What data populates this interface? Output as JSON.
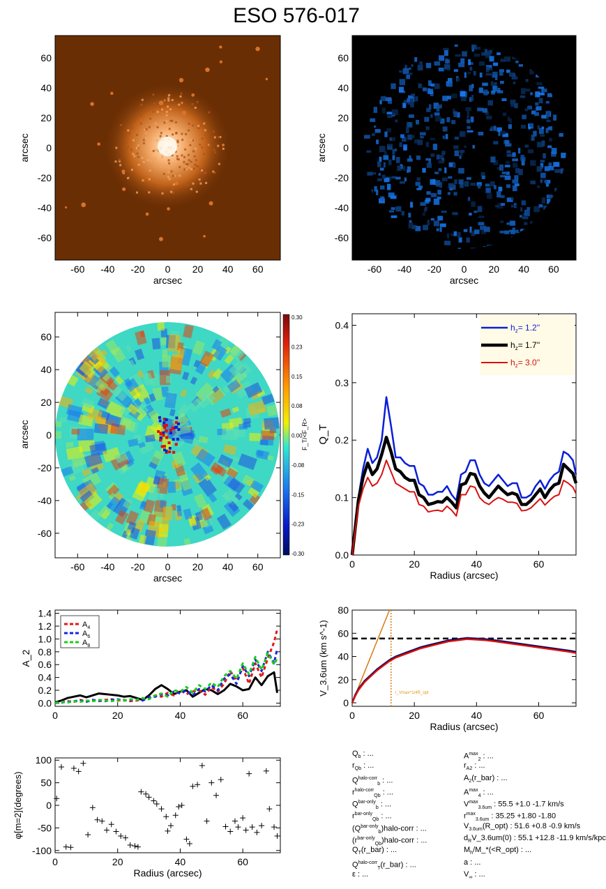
{
  "title": "ESO 576-017",
  "colors": {
    "image_bg": "#6a2e04",
    "glow": "#f4a25a",
    "map_bg": "#000000",
    "blue_sky": "#2a6fdc",
    "h1": "#0a1ed8",
    "h2": "#000000",
    "h3": "#d81010",
    "legend_bg": "#fffbe6",
    "A4": "#e01818",
    "A6": "#1424e8",
    "A8": "#18d018",
    "rot_line": "#d97a16",
    "vmax_text": "#e09a10"
  },
  "chart_data": [
    {
      "type": "image",
      "panel": "optical-image",
      "xlabel": "arcsec",
      "ylabel": "arcsec",
      "xticks": [
        -60,
        -40,
        -20,
        0,
        20,
        40,
        60
      ],
      "yticks": [
        60,
        40,
        20,
        0,
        -20,
        -40,
        -60
      ],
      "xlim": [
        -75,
        75
      ],
      "ylim": [
        -75,
        75
      ]
    },
    {
      "type": "image",
      "panel": "3.6um-image",
      "xlabel": "arcsec",
      "ylabel": "arcsec",
      "xticks": [
        -60,
        -40,
        -20,
        0,
        20,
        40,
        60
      ],
      "yticks": [
        60,
        40,
        20,
        0,
        -20,
        -40,
        -60
      ],
      "xlim": [
        -75,
        75
      ],
      "ylim": [
        -75,
        75
      ]
    },
    {
      "type": "heatmap",
      "panel": "force-ratio-map",
      "xlabel": "arcsec",
      "ylabel": "arcsec",
      "xticks": [
        -60,
        -40,
        -20,
        0,
        20,
        40,
        60
      ],
      "yticks": [
        60,
        40,
        20,
        0,
        -20,
        -40,
        -60
      ],
      "xlim": [
        -75,
        75
      ],
      "ylim": [
        -75,
        75
      ],
      "colorbar_label": "F_T/<F_R>",
      "colorbar_ticks": [
        "0.30",
        "0.23",
        "0.15",
        "0.08",
        "0.00",
        "-0.08",
        "-0.15",
        "-0.23",
        "-0.30"
      ]
    },
    {
      "type": "line",
      "panel": "QT-profile",
      "xlabel": "Radius (arcsec)",
      "ylabel": "Q_T",
      "xlim": [
        0,
        72
      ],
      "ylim": [
        0,
        0.42
      ],
      "xticks": [
        0,
        20,
        40,
        60
      ],
      "yticks": [
        "0.0",
        "0.1",
        "0.2",
        "0.3",
        "0.4"
      ],
      "x": [
        0,
        2,
        3.5,
        5,
        6.5,
        8,
        9.5,
        11,
        12.5,
        14,
        15.5,
        17,
        18.5,
        20,
        21.5,
        23,
        24.5,
        26,
        27.5,
        29,
        30.5,
        32,
        33.5,
        35,
        36.5,
        38,
        39.5,
        41,
        42.5,
        44,
        45.5,
        47,
        48.5,
        50,
        51.5,
        53,
        54.5,
        56,
        57.5,
        59,
        60.5,
        62,
        63.5,
        65,
        66.5,
        68,
        69.5,
        71,
        72
      ],
      "series": [
        {
          "name": "h_z=   1.2''",
          "label_prefix": "h",
          "label_sub": "z",
          "label_value": "=   1.2''",
          "color_key": "h1",
          "width": 2.5,
          "values": [
            0,
            0.1,
            0.15,
            0.185,
            0.16,
            0.17,
            0.2,
            0.275,
            0.225,
            0.17,
            0.17,
            0.16,
            0.155,
            0.155,
            0.125,
            0.12,
            0.105,
            0.105,
            0.11,
            0.11,
            0.12,
            0.105,
            0.095,
            0.14,
            0.145,
            0.165,
            0.165,
            0.14,
            0.125,
            0.12,
            0.13,
            0.14,
            0.13,
            0.12,
            0.125,
            0.125,
            0.1,
            0.1,
            0.105,
            0.12,
            0.13,
            0.115,
            0.13,
            0.14,
            0.145,
            0.18,
            0.175,
            0.165,
            0.14
          ]
        },
        {
          "name": "h_z=   1.7''",
          "label_prefix": "h",
          "label_sub": "z",
          "label_value": "=   1.7''",
          "color_key": "h2",
          "width": 4.5,
          "values": [
            0,
            0.095,
            0.135,
            0.16,
            0.14,
            0.15,
            0.175,
            0.205,
            0.18,
            0.15,
            0.145,
            0.135,
            0.13,
            0.13,
            0.105,
            0.1,
            0.088,
            0.09,
            0.093,
            0.092,
            0.1,
            0.092,
            0.082,
            0.122,
            0.125,
            0.142,
            0.14,
            0.12,
            0.108,
            0.1,
            0.11,
            0.12,
            0.112,
            0.105,
            0.108,
            0.105,
            0.088,
            0.088,
            0.095,
            0.105,
            0.115,
            0.1,
            0.113,
            0.122,
            0.125,
            0.158,
            0.15,
            0.142,
            0.125
          ]
        },
        {
          "name": "h_z=   3.0''",
          "label_prefix": "h",
          "label_sub": "z",
          "label_value": "=   3.0''",
          "color_key": "h3",
          "width": 2,
          "values": [
            0,
            0.085,
            0.115,
            0.135,
            0.12,
            0.125,
            0.14,
            0.165,
            0.145,
            0.125,
            0.12,
            0.115,
            0.11,
            0.11,
            0.088,
            0.085,
            0.075,
            0.077,
            0.078,
            0.076,
            0.085,
            0.078,
            0.068,
            0.105,
            0.105,
            0.12,
            0.118,
            0.1,
            0.092,
            0.088,
            0.095,
            0.1,
            0.097,
            0.092,
            0.092,
            0.09,
            0.077,
            0.078,
            0.082,
            0.09,
            0.098,
            0.087,
            0.095,
            0.102,
            0.105,
            0.13,
            0.125,
            0.118,
            0.107
          ]
        }
      ],
      "legend": "top-right"
    },
    {
      "type": "line",
      "panel": "fourier-amplitudes",
      "xlabel": "",
      "ylabel": "A_2",
      "xlim": [
        0,
        72
      ],
      "ylim": [
        -0.05,
        1.45
      ],
      "xticks": [
        0,
        20,
        40,
        60
      ],
      "yticks": [
        "0.0",
        "0.2",
        "0.4",
        "0.6",
        "0.8",
        "1.0",
        "1.2",
        "1.4"
      ],
      "x": [
        0,
        2,
        4,
        6,
        8,
        10,
        12,
        14,
        16,
        18,
        20,
        22,
        24,
        26,
        28,
        30,
        32,
        34,
        36,
        38,
        40,
        42,
        44,
        46,
        48,
        50,
        52,
        54,
        56,
        58,
        60,
        62,
        64,
        66,
        68,
        70,
        71
      ],
      "series": [
        {
          "name": "A_2",
          "color_key": "h2",
          "width": 3,
          "dash": "",
          "values": [
            0.01,
            0.04,
            0.08,
            0.1,
            0.12,
            0.09,
            0.12,
            0.15,
            0.14,
            0.13,
            0.12,
            0.1,
            0.11,
            0.08,
            0.05,
            0.12,
            0.22,
            0.28,
            0.22,
            0.14,
            0.18,
            0.2,
            0.1,
            0.16,
            0.22,
            0.2,
            0.14,
            0.2,
            0.3,
            0.26,
            0.2,
            0.22,
            0.4,
            0.28,
            0.42,
            0.48,
            0.16
          ]
        },
        {
          "name": "A4",
          "label_prefix": "A",
          "label_sub": "4",
          "color_key": "A4",
          "width": 3,
          "dash": "5,4",
          "values": [
            0.0,
            0.02,
            0.03,
            0.02,
            0.05,
            0.03,
            0.04,
            0.03,
            0.05,
            0.06,
            0.04,
            0.05,
            0.03,
            0.04,
            0.06,
            0.08,
            0.12,
            0.1,
            0.16,
            0.12,
            0.2,
            0.14,
            0.18,
            0.2,
            0.13,
            0.25,
            0.18,
            0.3,
            0.5,
            0.35,
            0.55,
            0.3,
            0.62,
            0.4,
            0.7,
            0.95,
            1.15
          ]
        },
        {
          "name": "A6",
          "label_prefix": "A",
          "label_sub": "6",
          "color_key": "A6",
          "width": 3,
          "dash": "5,4",
          "values": [
            0.0,
            0.01,
            0.02,
            0.03,
            0.04,
            0.02,
            0.05,
            0.04,
            0.03,
            0.05,
            0.06,
            0.04,
            0.05,
            0.06,
            0.04,
            0.09,
            0.1,
            0.14,
            0.12,
            0.18,
            0.15,
            0.2,
            0.12,
            0.22,
            0.18,
            0.28,
            0.2,
            0.38,
            0.45,
            0.3,
            0.58,
            0.42,
            0.68,
            0.5,
            0.8,
            0.62,
            0.85
          ]
        },
        {
          "name": "A8",
          "label_prefix": "A",
          "label_sub": "8",
          "color_key": "A8",
          "width": 3,
          "dash": "5,4",
          "values": [
            0.0,
            0.02,
            0.01,
            0.03,
            0.02,
            0.04,
            0.03,
            0.05,
            0.04,
            0.03,
            0.05,
            0.04,
            0.06,
            0.05,
            0.08,
            0.06,
            0.12,
            0.15,
            0.1,
            0.2,
            0.18,
            0.25,
            0.16,
            0.28,
            0.22,
            0.32,
            0.25,
            0.42,
            0.5,
            0.38,
            0.62,
            0.45,
            0.72,
            0.52,
            0.78,
            0.6,
            0.7
          ]
        }
      ],
      "legend": "top-left"
    },
    {
      "type": "line",
      "panel": "rotation-curve",
      "xlabel": "Radius (arcsec)",
      "ylabel": "V_3.6um (km s^-1)",
      "xlim": [
        0,
        72
      ],
      "ylim": [
        -3,
        80
      ],
      "xticks": [
        0,
        20,
        40,
        60
      ],
      "yticks": [
        "0",
        "20",
        "40",
        "60",
        "80"
      ],
      "x": [
        0,
        1,
        2,
        4,
        6,
        8,
        10,
        12,
        14,
        16,
        18,
        20,
        22,
        25,
        28,
        31,
        34,
        37,
        40,
        43,
        46,
        50,
        54,
        58,
        62,
        66,
        70,
        72
      ],
      "series": [
        {
          "name": "V1",
          "color_key": "h1",
          "width": 2.5,
          "values": [
            0,
            7,
            12,
            19,
            24,
            29,
            33,
            37,
            40,
            42,
            44,
            46,
            48,
            50,
            52,
            54,
            55,
            56,
            55.5,
            55,
            54,
            52.5,
            51,
            49.5,
            48,
            46.5,
            45,
            44
          ]
        },
        {
          "name": "V2",
          "color_key": "h2",
          "width": 2.5,
          "values": [
            0,
            6.5,
            11.5,
            18.5,
            23.5,
            28.5,
            32.5,
            36.5,
            39.5,
            41.5,
            43.5,
            45.5,
            47.5,
            49.5,
            51.5,
            53.5,
            54.5,
            55.5,
            55,
            54.5,
            53.5,
            52,
            50.5,
            49,
            47.5,
            46,
            44.5,
            43.5
          ]
        },
        {
          "name": "V3",
          "color_key": "h3",
          "width": 2.5,
          "values": [
            0,
            6,
            11,
            18,
            23,
            28,
            32,
            36,
            39,
            41,
            43,
            45,
            47,
            49,
            51,
            53,
            54,
            55,
            54.5,
            54,
            53,
            51.5,
            50,
            48.5,
            47,
            45.5,
            44,
            43
          ]
        }
      ],
      "hline": 55.5,
      "vline": 12.5,
      "steep_line": {
        "x": [
          0,
          12
        ],
        "y": [
          0,
          85
        ]
      },
      "vline_label": "r_Vmax^1/4R_opt"
    },
    {
      "type": "scatter",
      "panel": "phase-m2",
      "xlabel": "Radius (arcsec)",
      "ylabel": "φ[m=2](degrees)",
      "xlim": [
        0,
        72
      ],
      "ylim": [
        -105,
        105
      ],
      "xticks": [
        0,
        20,
        40,
        60
      ],
      "yticks": [
        "100",
        "50",
        "0",
        "-50",
        "-100"
      ],
      "points": [
        [
          0.5,
          15
        ],
        [
          2,
          85
        ],
        [
          3.5,
          -92
        ],
        [
          5,
          -93
        ],
        [
          6,
          82
        ],
        [
          7.5,
          75
        ],
        [
          9,
          93
        ],
        [
          10.5,
          -65
        ],
        [
          12,
          -5
        ],
        [
          13.5,
          -32
        ],
        [
          15,
          -35
        ],
        [
          16.5,
          -55
        ],
        [
          18,
          -42
        ],
        [
          19.5,
          -58
        ],
        [
          21,
          -68
        ],
        [
          22.5,
          -72
        ],
        [
          24,
          -88
        ],
        [
          25.5,
          -90
        ],
        [
          26.5,
          -92
        ],
        [
          27.5,
          30
        ],
        [
          29,
          25
        ],
        [
          30,
          18
        ],
        [
          31.5,
          10
        ],
        [
          32.5,
          3
        ],
        [
          34,
          -8
        ],
        [
          35.5,
          -25
        ],
        [
          36,
          -57
        ],
        [
          37,
          -45
        ],
        [
          38.5,
          -22
        ],
        [
          39.5,
          -3
        ],
        [
          40.5,
          0
        ],
        [
          42,
          -75
        ],
        [
          43,
          -85
        ],
        [
          44,
          42
        ],
        [
          45.5,
          46
        ],
        [
          47,
          88
        ],
        [
          48.5,
          -35
        ],
        [
          50,
          50
        ],
        [
          51.5,
          22
        ],
        [
          53,
          57
        ],
        [
          54.5,
          -47
        ],
        [
          56,
          -58
        ],
        [
          57.5,
          -35
        ],
        [
          58.5,
          -48
        ],
        [
          60,
          -28
        ],
        [
          61,
          -55
        ],
        [
          62,
          70
        ],
        [
          63,
          -48
        ],
        [
          64.5,
          -60
        ],
        [
          66,
          -45
        ],
        [
          67.5,
          76
        ],
        [
          68.5,
          -8
        ],
        [
          70,
          -48
        ],
        [
          71,
          -68
        ]
      ]
    }
  ],
  "params_left": [
    {
      "p": "Q",
      "sub": "b",
      "sup": "",
      "t": " : ..."
    },
    {
      "p": "r",
      "sub": "Qb",
      "sup": "",
      "t": " : ..."
    },
    {
      "p": "Q",
      "sub": "b",
      "sup": "halo-corr",
      "t": " : ..."
    },
    {
      "p": "r",
      "sub": "Qb",
      "sup": "halo-corr",
      "t": " : ..."
    },
    {
      "p": "Q",
      "sub": "b",
      "sup": "bar-only",
      "t": " : ..."
    },
    {
      "p": "r",
      "sub": "Qb",
      "sup": "bar-only",
      "t": " : ..."
    },
    {
      "p": "(Q",
      "sub": "b",
      "sup": "bar-only",
      "t": ")halo-corr : ..."
    },
    {
      "p": "(r",
      "sub": "Qb",
      "sup": "bar-only",
      "t": ")halo-corr : ..."
    },
    {
      "p": "Q",
      "sub": "T",
      "sup": "",
      "t": "(r_bar) : ..."
    },
    {
      "p": "Q",
      "sub": "T",
      "sup": "halo-corr",
      "t": "(r_bar) : ..."
    },
    {
      "p": "ε",
      "sub": "",
      "sup": "",
      "t": " : ..."
    }
  ],
  "params_right": [
    {
      "p": "A",
      "sub": "2",
      "sup": "max",
      "t": " : ..."
    },
    {
      "p": "r",
      "sub": "A2",
      "sup": "",
      "t": " : ..."
    },
    {
      "p": "A",
      "sub": "2",
      "sup": "",
      "t": "(r_bar) : ..."
    },
    {
      "p": "A",
      "sub": "4",
      "sup": "max",
      "t": " : ..."
    },
    {
      "p": "V",
      "sub": "3.6um",
      "sup": "max",
      "t": " :  55.5 +1.0 -1.7 km/s"
    },
    {
      "p": "r",
      "sub": "3.6um",
      "sup": "max",
      "t": " :  35.25 +1.80 -1.80"
    },
    {
      "p": "V",
      "sub": "3.6um",
      "sup": "",
      "t": "(R_opt) :  51.6 +0.8 -0.9 km/s"
    },
    {
      "p": "d",
      "sub": "R",
      "sup": "",
      "t": "V_3.6um(0) :  55.1 +12.8 -11.9 km/s/kpc"
    },
    {
      "p": "M",
      "sub": "h",
      "sup": "",
      "t": "/M_*(<R_opt) : ..."
    },
    {
      "p": "a",
      "sub": "",
      "sup": "",
      "t": " : ..."
    },
    {
      "p": "V",
      "sub": "∞",
      "sup": "",
      "t": " : ..."
    }
  ]
}
